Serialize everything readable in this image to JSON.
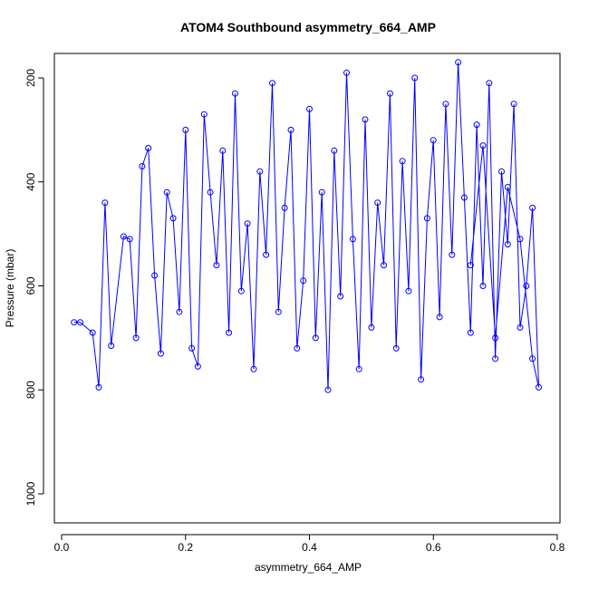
{
  "chart_data": {
    "type": "scatter",
    "title": "ATOM4 Southbound asymmetry_664_AMP",
    "xlabel": "asymmetry_664_AMP",
    "ylabel": "Pressure (mbar)",
    "xlim": [
      0.0,
      0.8
    ],
    "ylim": [
      1050,
      160
    ],
    "y_reversed": true,
    "x_ticks": [
      "0.0",
      "0.2",
      "0.4",
      "0.6",
      "0.8"
    ],
    "x_tick_values": [
      0.0,
      0.2,
      0.4,
      0.6,
      0.8
    ],
    "y_ticks": [
      "200",
      "400",
      "600",
      "800",
      "1000"
    ],
    "y_tick_values": [
      200,
      400,
      600,
      800,
      1000
    ],
    "grid": false,
    "legend": "none",
    "marker": "open-circle",
    "connected_lines": true,
    "series_color": "#0000ff",
    "series": [
      {
        "points": [
          [
            0.02,
            670
          ],
          [
            0.03,
            670
          ],
          [
            0.05,
            690
          ],
          [
            0.06,
            795
          ],
          [
            0.07,
            440
          ],
          [
            0.08,
            715
          ],
          [
            0.1,
            505
          ],
          [
            0.11,
            510
          ],
          [
            0.12,
            700
          ],
          [
            0.13,
            370
          ],
          [
            0.14,
            335
          ],
          [
            0.15,
            580
          ],
          [
            0.16,
            730
          ],
          [
            0.17,
            420
          ],
          [
            0.18,
            470
          ],
          [
            0.19,
            650
          ],
          [
            0.2,
            300
          ],
          [
            0.21,
            720
          ],
          [
            0.22,
            755
          ],
          [
            0.23,
            270
          ],
          [
            0.24,
            420
          ],
          [
            0.25,
            560
          ],
          [
            0.26,
            340
          ],
          [
            0.27,
            690
          ],
          [
            0.28,
            230
          ],
          [
            0.29,
            610
          ],
          [
            0.3,
            480
          ],
          [
            0.31,
            760
          ],
          [
            0.32,
            380
          ],
          [
            0.33,
            540
          ],
          [
            0.34,
            210
          ],
          [
            0.35,
            650
          ],
          [
            0.36,
            450
          ],
          [
            0.37,
            300
          ],
          [
            0.38,
            720
          ],
          [
            0.39,
            590
          ],
          [
            0.4,
            260
          ],
          [
            0.41,
            700
          ],
          [
            0.42,
            420
          ],
          [
            0.43,
            800
          ],
          [
            0.44,
            340
          ],
          [
            0.45,
            620
          ],
          [
            0.46,
            190
          ],
          [
            0.47,
            510
          ],
          [
            0.48,
            760
          ],
          [
            0.49,
            280
          ],
          [
            0.5,
            680
          ],
          [
            0.51,
            440
          ],
          [
            0.52,
            560
          ],
          [
            0.53,
            230
          ],
          [
            0.54,
            720
          ],
          [
            0.55,
            360
          ],
          [
            0.56,
            610
          ],
          [
            0.57,
            200
          ],
          [
            0.58,
            780
          ],
          [
            0.59,
            470
          ],
          [
            0.6,
            320
          ],
          [
            0.61,
            660
          ],
          [
            0.62,
            250
          ],
          [
            0.63,
            540
          ],
          [
            0.64,
            170
          ],
          [
            0.65,
            430
          ],
          [
            0.66,
            690
          ],
          [
            0.67,
            290
          ],
          [
            0.68,
            600
          ],
          [
            0.69,
            210
          ],
          [
            0.7,
            740
          ],
          [
            0.71,
            380
          ],
          [
            0.72,
            520
          ],
          [
            0.73,
            250
          ],
          [
            0.74,
            680
          ],
          [
            0.75,
            600
          ],
          [
            0.76,
            450
          ],
          [
            0.77,
            795
          ],
          [
            0.76,
            740
          ],
          [
            0.74,
            510
          ],
          [
            0.72,
            410
          ],
          [
            0.7,
            700
          ],
          [
            0.68,
            330
          ],
          [
            0.66,
            560
          ]
        ]
      }
    ]
  }
}
